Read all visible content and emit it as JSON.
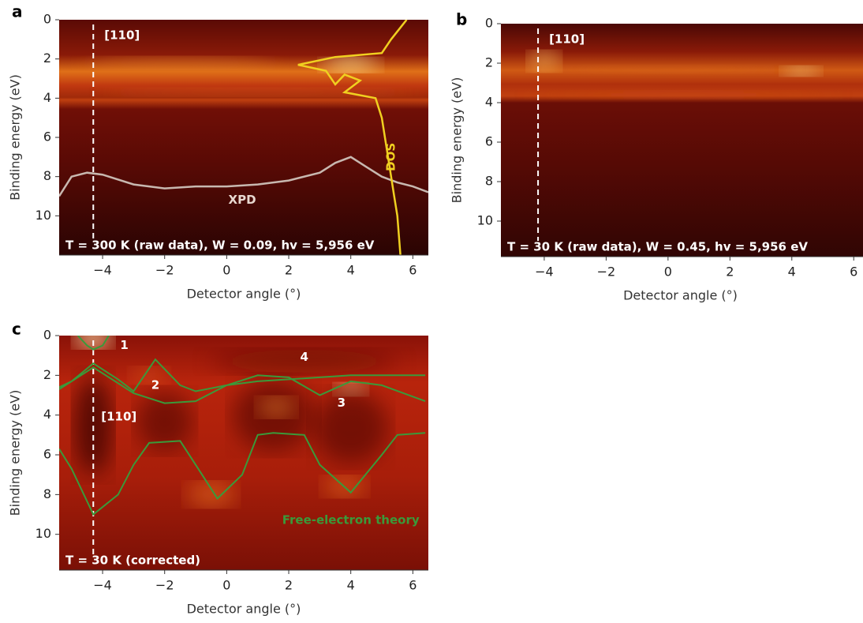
{
  "chart_data": [
    {
      "type": "heatmap",
      "panel": "a",
      "title": "T = 300 K (raw data), W = 0.09, hv = 5,956 eV",
      "xlabel": "Detector angle (°)",
      "ylabel": "Binding energy (eV)",
      "xlim": [
        -5.4,
        6.5
      ],
      "ylim": [
        0,
        12
      ],
      "xticks": [
        {
          "value": -4,
          "label": "−4"
        },
        {
          "value": -2,
          "label": "−2"
        },
        0,
        2,
        4,
        6
      ],
      "yticks": [
        0,
        2,
        4,
        6,
        8,
        10
      ],
      "direction_angle": -4.3,
      "direction_label": "[110]",
      "series": [
        {
          "name": "XPD",
          "color": "#c8b8b0",
          "x": [
            -5.4,
            -5,
            -4.5,
            -4,
            -3,
            -2,
            -1,
            0,
            1,
            2,
            3,
            3.5,
            4,
            4.5,
            5,
            5.5,
            6,
            6.5
          ],
          "values": [
            9,
            8,
            7.8,
            7.9,
            8.4,
            8.6,
            8.5,
            8.5,
            8.4,
            8.2,
            7.8,
            7.3,
            7.0,
            7.5,
            8.0,
            8.3,
            8.5,
            8.8
          ]
        },
        {
          "name": "DOS",
          "color": "#f0d020",
          "x": [
            5.8,
            5.3,
            5.0,
            3.5,
            2.3,
            3.2,
            3.5,
            3.8,
            4.3,
            3.8,
            4.8,
            5.0,
            5.2,
            5.4,
            5.5,
            5.6
          ],
          "values": [
            0,
            1.0,
            1.7,
            1.9,
            2.3,
            2.6,
            3.3,
            2.8,
            3.1,
            3.7,
            4.0,
            5.0,
            7,
            9,
            10,
            12
          ]
        }
      ]
    },
    {
      "type": "heatmap",
      "panel": "b",
      "title": "T = 30 K (raw data), W = 0.45, hv = 5,956 eV",
      "xlabel": "Detector angle (°)",
      "ylabel": "Binding energy (eV)",
      "xlim": [
        -5.4,
        6.3
      ],
      "ylim": [
        0,
        11.8
      ],
      "xticks": [
        {
          "value": -4,
          "label": "−4"
        },
        {
          "value": -2,
          "label": "−2"
        },
        0,
        2,
        4,
        6
      ],
      "yticks": [
        0,
        2,
        4,
        6,
        8,
        10
      ],
      "direction_angle": -4.2,
      "direction_label": "[110]",
      "series": []
    },
    {
      "type": "heatmap",
      "panel": "c",
      "title": "T = 30 K (corrected)",
      "xlabel": "Detector angle (°)",
      "ylabel": "Binding energy (eV)",
      "xlim": [
        -5.4,
        6.5
      ],
      "ylim": [
        0,
        11.8
      ],
      "xticks": [
        {
          "value": -4,
          "label": "−4"
        },
        {
          "value": -2,
          "label": "−2"
        },
        0,
        2,
        4,
        6
      ],
      "yticks": [
        0,
        2,
        4,
        6,
        8,
        10
      ],
      "direction_angle": -4.3,
      "direction_label": "[110]",
      "annotations": [
        "1",
        "2",
        "3",
        "4"
      ],
      "series": [
        {
          "name": "Free-electron theory",
          "color": "#3a9a3a",
          "x": [
            -4.8,
            -4.5,
            -4.3,
            -4.0,
            -3.8,
            null,
            -5.4,
            -5,
            -4.3,
            -3.5,
            -3,
            -2.3,
            -1.5,
            -1,
            0,
            1,
            2,
            3,
            4,
            5,
            6.4,
            null,
            -5.4,
            -4.3,
            -3,
            -2,
            -1,
            0,
            1,
            2,
            3,
            4,
            5,
            6.4,
            null,
            -5.4,
            -5,
            -4.3,
            -3.5,
            -3,
            -2.5,
            -1.5,
            -1,
            -0.3,
            0.5,
            1,
            1.5,
            2.5,
            3,
            4,
            5,
            5.5,
            6.4
          ],
          "values": [
            0,
            0.5,
            0.7,
            0.5,
            0,
            null,
            2.6,
            2.3,
            1.4,
            2.2,
            2.8,
            1.2,
            2.5,
            2.8,
            2.5,
            2.3,
            2.2,
            2.1,
            2.0,
            2.0,
            2.0,
            null,
            2.7,
            1.6,
            2.9,
            3.4,
            3.3,
            2.5,
            2.0,
            2.1,
            3.0,
            2.3,
            2.5,
            3.3,
            null,
            5.7,
            6.7,
            9,
            8,
            6.5,
            5.4,
            5.3,
            6.5,
            8.2,
            7,
            5,
            4.9,
            5.0,
            6.5,
            7.9,
            6,
            5,
            4.9
          ]
        }
      ]
    }
  ]
}
